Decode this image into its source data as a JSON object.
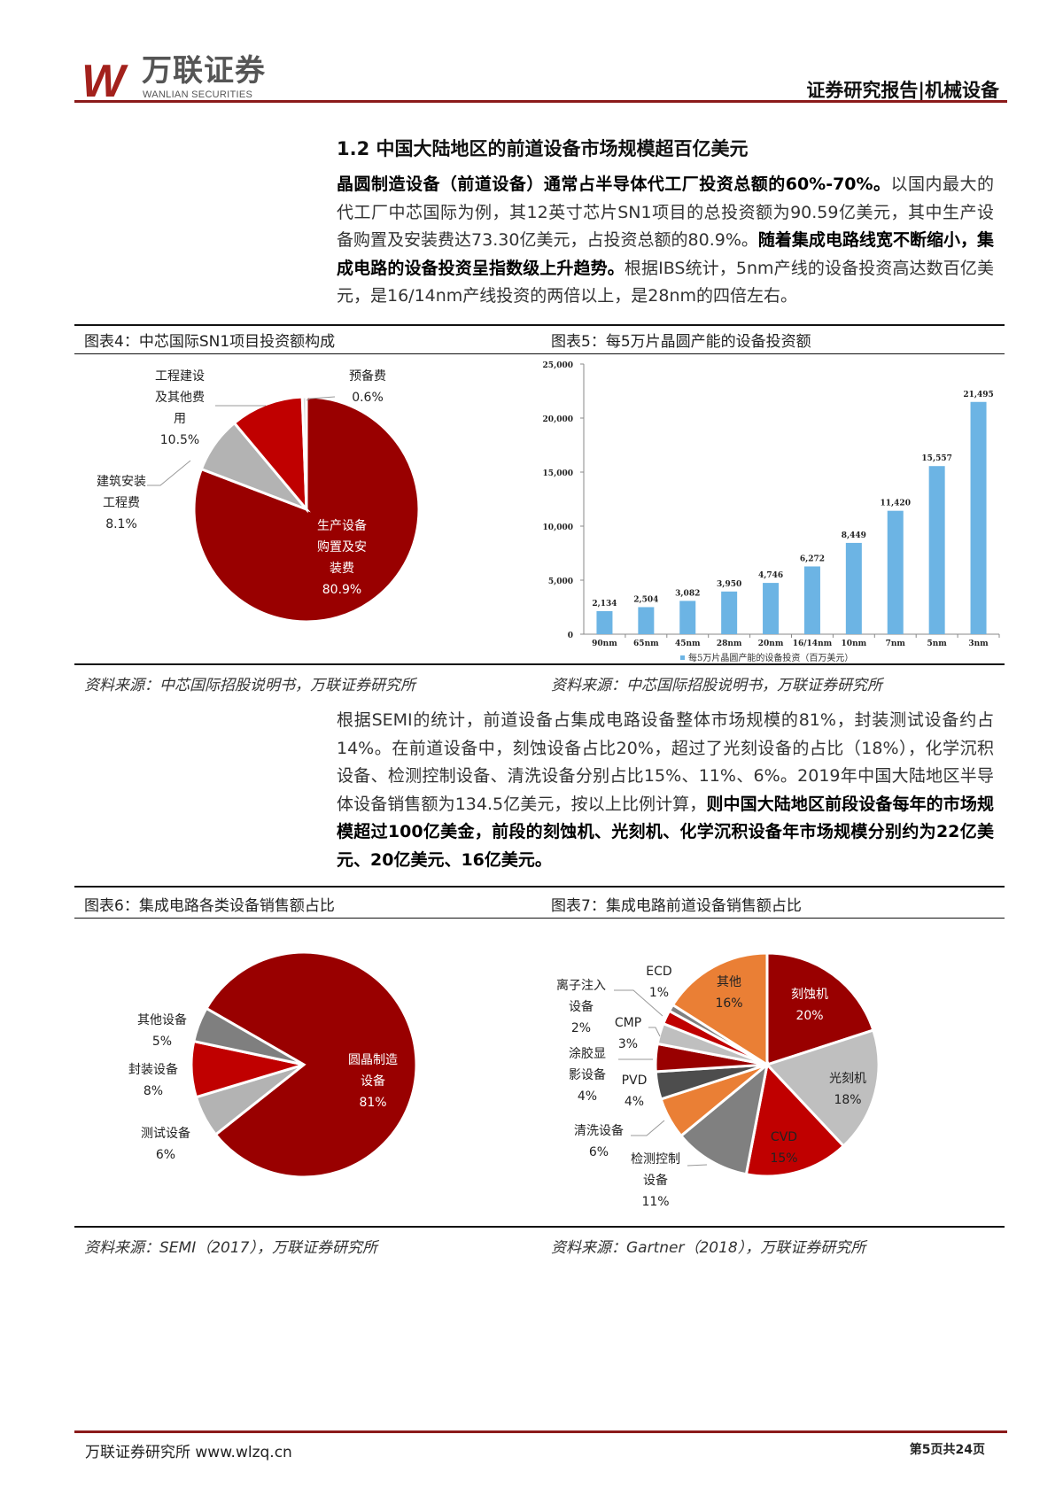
{
  "header": {
    "logo_mark": "W",
    "logo_cn": "万联证券",
    "logo_en": "WANLIAN SECURITIES",
    "report_type": "证券研究报告|机械设备"
  },
  "section": {
    "heading": "1.2 中国大陆地区的前道设备市场规模超百亿美元"
  },
  "para1": [
    {
      "text": "晶圆制造设备（前道设备）通常占半导体代工厂投资总额的60%-70%。",
      "bold": true
    },
    {
      "text": "以国内最大的代工厂中芯国际为例，其12英寸芯片SN1项目的总投资额为90.59亿美元，其中生产设备购置及安装费达73.30亿美元，占投资总额的80.9%。",
      "bold": false
    },
    {
      "text": "随着集成电路线宽不断缩小，集成电路的设备投资呈指数级上升趋势。",
      "bold": true
    },
    {
      "text": "根据IBS统计，5nm产线的设备投资高达数百亿美元，是16/14nm产线投资的两倍以上，是28nm的四倍左右。",
      "bold": false
    }
  ],
  "para2": [
    {
      "text": "根据SEMI的统计，前道设备占集成电路设备整体市场规模的81%，封装测试设备约占14%。在前道设备中，刻蚀设备占比20%，超过了光刻设备的占比（18%），化学沉积设备、检测控制设备、清洗设备分别占比15%、11%、6%。2019年中国大陆地区半导体设备销售额为134.5亿美元，按以上比例计算，",
      "bold": false
    },
    {
      "text": "则中国大陆地区前段设备每年的市场规模超过100亿美金，前段的刻蚀机、光刻机、化学沉积设备年市场规模分别约为22亿美元、20亿美元、16亿美元。",
      "bold": true
    }
  ],
  "figures": {
    "fig4_caption": "图表4：中芯国际SN1项目投资额构成",
    "fig5_caption": "图表5：每5万片晶圆产能的设备投资额",
    "fig4_source": "资料来源：中芯国际招股说明书，万联证券研究所",
    "fig5_source": "资料来源：中芯国际招股说明书，万联证券研究所",
    "fig6_caption": "图表6：集成电路各类设备销售额占比",
    "fig7_caption": "图表7：集成电路前道设备销售额占比",
    "fig6_source": "资料来源：SEMI（2017），万联证券研究所",
    "fig7_source": "资料来源：Gartner（2018），万联证券研究所"
  },
  "chart_data": [
    {
      "type": "pie",
      "slices": [
        {
          "label": [
            "生产设备",
            "购置及安",
            "装费"
          ],
          "value": 80.9,
          "display": "80.9%",
          "color": "#990000"
        },
        {
          "label": [
            "建筑安装",
            "工程费"
          ],
          "value": 8.1,
          "display": "8.1%",
          "color": "#b3b3b3"
        },
        {
          "label": [
            "工程建设",
            "及其他费",
            "用"
          ],
          "value": 10.5,
          "display": "10.5%",
          "color": "#c00000"
        },
        {
          "label": [
            "预备费"
          ],
          "value": 0.6,
          "display": "0.6%",
          "color": "#d9d9d9"
        }
      ]
    },
    {
      "type": "bar",
      "categories": [
        "90nm",
        "65nm",
        "45nm",
        "28nm",
        "20nm",
        "16/14nm",
        "10nm",
        "7nm",
        "5nm",
        "3nm"
      ],
      "values": [
        2134,
        2504,
        3082,
        3950,
        4746,
        6272,
        8449,
        11420,
        15557,
        21495
      ],
      "value_labels": [
        "2,134",
        "2,504",
        "3,082",
        "3,950",
        "4,746",
        "6,272",
        "8,449",
        "11,420",
        "15,557",
        "21,495"
      ],
      "yticks": [
        "0",
        "5,000",
        "10,000",
        "15,000",
        "20,000",
        "25,000"
      ],
      "ylim": [
        0,
        25000
      ],
      "legend": "每5万片晶圆产能的设备投资（百万美元）",
      "legend_position": "bottom",
      "color": "#6cb4e4",
      "grid": false
    },
    {
      "type": "pie",
      "slices": [
        {
          "label": [
            "圆晶制造",
            "设备"
          ],
          "value": 81,
          "display": "81%",
          "color": "#990000"
        },
        {
          "label": [
            "测试设备"
          ],
          "value": 6,
          "display": "6%",
          "color": "#b3b3b3"
        },
        {
          "label": [
            "封装设备"
          ],
          "value": 8,
          "display": "8%",
          "color": "#c00000"
        },
        {
          "label": [
            "其他设备"
          ],
          "value": 5,
          "display": "5%",
          "color": "#7f7f7f"
        }
      ]
    },
    {
      "type": "pie",
      "slices": [
        {
          "label": [
            "刻蚀机"
          ],
          "value": 20,
          "display": "20%",
          "color": "#990000"
        },
        {
          "label": [
            "光刻机"
          ],
          "value": 18,
          "display": "18%",
          "color": "#bfbfbf"
        },
        {
          "label": [
            "CVD"
          ],
          "value": 15,
          "display": "15%",
          "color": "#c00000"
        },
        {
          "label": [
            "检测控制",
            "设备"
          ],
          "value": 11,
          "display": "11%",
          "color": "#808080"
        },
        {
          "label": [
            "清洗设备"
          ],
          "value": 6,
          "display": "6%",
          "color": "#ea7f35"
        },
        {
          "label": [
            "PVD"
          ],
          "value": 4,
          "display": "4%",
          "color": "#4d4d4d"
        },
        {
          "label": [
            "涂胶显",
            "影设备"
          ],
          "value": 4,
          "display": "4%",
          "color": "#990000"
        },
        {
          "label": [
            "CMP"
          ],
          "value": 3,
          "display": "3%",
          "color": "#bfbfbf"
        },
        {
          "label": [
            "离子注入",
            "设备"
          ],
          "value": 2,
          "display": "2%",
          "color": "#c00000"
        },
        {
          "label": [
            "ECD"
          ],
          "value": 1,
          "display": "1%",
          "color": "#808080"
        },
        {
          "label": [
            "其他"
          ],
          "value": 16,
          "display": "16%",
          "color": "#ea7f35"
        }
      ]
    }
  ],
  "footer": {
    "org": "万联证券研究所 www.wlzq.cn",
    "page": "第5页共24页"
  }
}
